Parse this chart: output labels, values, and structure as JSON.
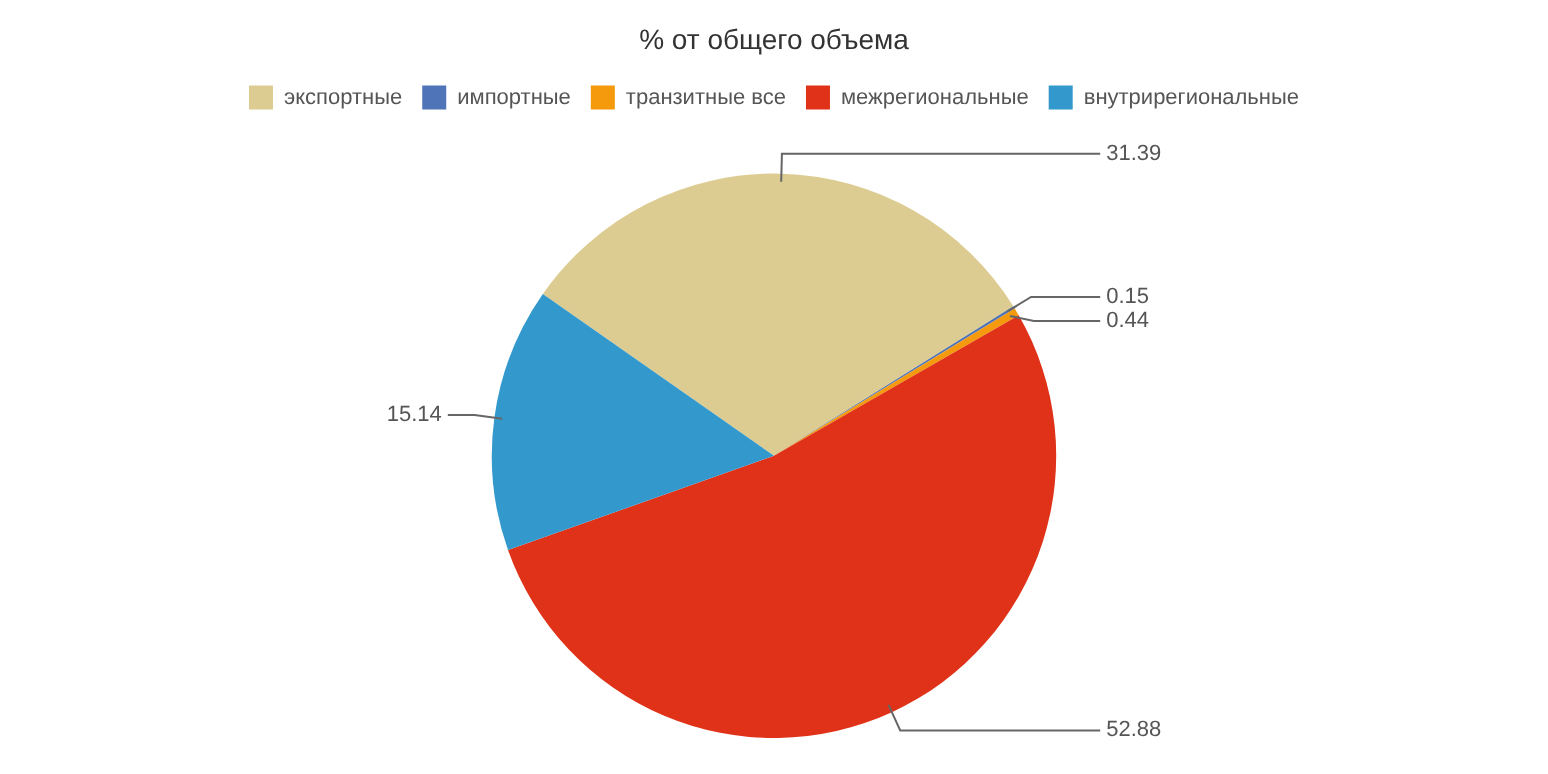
{
  "chart_data": {
    "type": "pie",
    "title": "% от общего объема",
    "categories": [
      "экспортные",
      "импортные",
      "транзитные все",
      "межрегиональные",
      "внутрирегиональные"
    ],
    "values": [
      31.39,
      0.15,
      0.44,
      52.88,
      15.14
    ],
    "colors": [
      "#ddcc92",
      "#4f74b8",
      "#f59a0c",
      "#e03218",
      "#3399cc"
    ],
    "legend": "top",
    "data_labels": true
  }
}
